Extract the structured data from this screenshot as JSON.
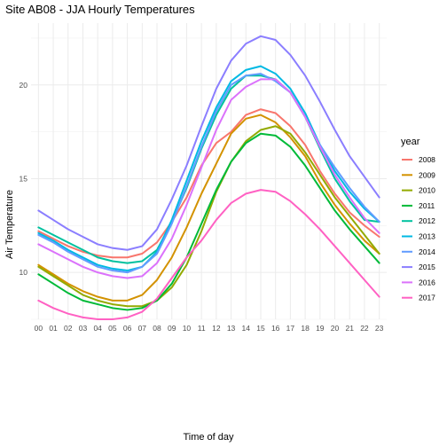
{
  "chart_data": {
    "type": "line",
    "title": "Site AB08 - JJA Hourly Temperatures",
    "xlabel": "Time of day",
    "ylabel": "Air Temperature",
    "x": [
      "00",
      "01",
      "02",
      "03",
      "04",
      "05",
      "06",
      "07",
      "08",
      "09",
      "10",
      "11",
      "12",
      "13",
      "14",
      "15",
      "16",
      "17",
      "18",
      "19",
      "20",
      "21",
      "22",
      "23"
    ],
    "y_ticks": [
      10,
      15,
      20
    ],
    "ylim": [
      7.5,
      23.3
    ],
    "grid": true,
    "legend": {
      "title": "year",
      "position": "right"
    },
    "series": [
      {
        "name": "2008",
        "color": "#F8766D",
        "values": [
          12.2,
          11.8,
          11.4,
          11.1,
          10.9,
          10.8,
          10.8,
          11.0,
          11.6,
          12.7,
          14.0,
          15.7,
          16.9,
          17.5,
          18.4,
          18.7,
          18.5,
          17.8,
          16.8,
          15.4,
          14.2,
          13.2,
          12.5,
          11.9
        ]
      },
      {
        "name": "2009",
        "color": "#D39200",
        "values": [
          10.4,
          9.9,
          9.4,
          9.0,
          8.7,
          8.5,
          8.5,
          8.8,
          9.6,
          10.8,
          12.4,
          14.2,
          15.8,
          17.4,
          18.2,
          18.4,
          18.0,
          17.2,
          16.2,
          14.8,
          13.6,
          12.6,
          11.7,
          11.0
        ]
      },
      {
        "name": "2010",
        "color": "#93AA00",
        "values": [
          10.3,
          9.8,
          9.3,
          8.8,
          8.5,
          8.3,
          8.2,
          8.2,
          8.5,
          9.2,
          10.4,
          12.2,
          14.3,
          15.9,
          17.0,
          17.6,
          17.8,
          17.4,
          16.4,
          15.2,
          14.0,
          13.0,
          12.0,
          11.0
        ]
      },
      {
        "name": "2011",
        "color": "#00BA38",
        "values": [
          9.9,
          9.4,
          8.9,
          8.5,
          8.3,
          8.1,
          8.0,
          8.1,
          8.5,
          9.4,
          10.8,
          12.6,
          14.4,
          15.9,
          16.9,
          17.4,
          17.3,
          16.7,
          15.7,
          14.5,
          13.3,
          12.3,
          11.4,
          10.5
        ]
      },
      {
        "name": "2012",
        "color": "#00C19F",
        "values": [
          12.4,
          12.0,
          11.6,
          11.2,
          10.8,
          10.6,
          10.5,
          10.6,
          11.2,
          12.7,
          14.5,
          16.6,
          18.4,
          19.8,
          20.5,
          20.5,
          20.3,
          19.6,
          18.3,
          16.6,
          15.0,
          13.8,
          12.8,
          12.7
        ]
      },
      {
        "name": "2013",
        "color": "#00B9E3",
        "values": [
          12.1,
          11.7,
          11.2,
          10.8,
          10.4,
          10.2,
          10.1,
          10.3,
          11.1,
          12.8,
          14.9,
          17.0,
          18.8,
          20.2,
          20.8,
          21.0,
          20.6,
          19.8,
          18.5,
          16.8,
          15.4,
          14.3,
          13.4,
          12.7
        ]
      },
      {
        "name": "2014",
        "color": "#619CFF",
        "values": [
          12.0,
          11.6,
          11.1,
          10.7,
          10.3,
          10.1,
          10.0,
          10.3,
          11.0,
          12.6,
          14.6,
          16.7,
          18.6,
          20.0,
          20.5,
          20.6,
          20.2,
          19.6,
          18.3,
          16.8,
          15.6,
          14.5,
          13.5,
          12.7
        ]
      },
      {
        "name": "2015",
        "color": "#8B7EFF",
        "values": [
          13.3,
          12.8,
          12.3,
          11.9,
          11.5,
          11.3,
          11.2,
          11.4,
          12.3,
          13.9,
          15.7,
          17.8,
          19.8,
          21.3,
          22.2,
          22.6,
          22.4,
          21.6,
          20.5,
          19.1,
          17.6,
          16.2,
          15.1,
          14.0
        ]
      },
      {
        "name": "2016",
        "color": "#DB72FB",
        "values": [
          11.5,
          11.1,
          10.7,
          10.3,
          10.0,
          9.8,
          9.7,
          9.8,
          10.5,
          11.8,
          13.6,
          15.6,
          17.6,
          19.2,
          19.9,
          20.3,
          20.3,
          19.6,
          18.3,
          16.7,
          15.2,
          14.0,
          12.9,
          12.1
        ]
      },
      {
        "name": "2017",
        "color": "#FF61C3",
        "values": [
          8.5,
          8.1,
          7.8,
          7.6,
          7.5,
          7.5,
          7.6,
          7.9,
          8.6,
          9.7,
          10.8,
          11.7,
          12.8,
          13.7,
          14.2,
          14.4,
          14.3,
          13.8,
          13.1,
          12.3,
          11.4,
          10.5,
          9.6,
          8.7
        ]
      }
    ]
  }
}
